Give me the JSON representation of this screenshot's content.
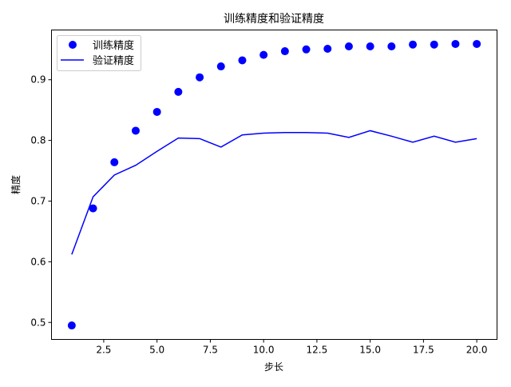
{
  "chart_data": {
    "type": "line",
    "title": "训练精度和验证精度",
    "xlabel": "步长",
    "ylabel": "精度",
    "xlim": [
      0.05,
      20.95
    ],
    "ylim": [
      0.472,
      0.982
    ],
    "xticks": [
      2.5,
      5.0,
      7.5,
      10.0,
      12.5,
      15.0,
      17.5,
      20.0
    ],
    "xtick_labels": [
      "2.5",
      "5.0",
      "7.5",
      "10.0",
      "12.5",
      "15.0",
      "17.5",
      "20.0"
    ],
    "yticks": [
      0.5,
      0.6,
      0.7,
      0.8,
      0.9
    ],
    "ytick_labels": [
      "0.5",
      "0.6",
      "0.7",
      "0.8",
      "0.9"
    ],
    "grid": false,
    "legend_position": "top-left",
    "x": [
      1,
      2,
      3,
      4,
      5,
      6,
      7,
      8,
      9,
      10,
      11,
      12,
      13,
      14,
      15,
      16,
      17,
      18,
      19,
      20
    ],
    "series": [
      {
        "name": "训练精度",
        "style": "scatter",
        "color": "#0000ff",
        "values": [
          0.495,
          0.688,
          0.764,
          0.816,
          0.847,
          0.88,
          0.904,
          0.922,
          0.932,
          0.941,
          0.947,
          0.95,
          0.951,
          0.955,
          0.955,
          0.955,
          0.958,
          0.958,
          0.959,
          0.959
        ]
      },
      {
        "name": "验证精度",
        "style": "line",
        "color": "#0000ff",
        "values": [
          0.612,
          0.707,
          0.743,
          0.759,
          0.782,
          0.804,
          0.803,
          0.789,
          0.809,
          0.812,
          0.813,
          0.813,
          0.812,
          0.805,
          0.816,
          0.807,
          0.797,
          0.807,
          0.797,
          0.803
        ]
      }
    ]
  }
}
